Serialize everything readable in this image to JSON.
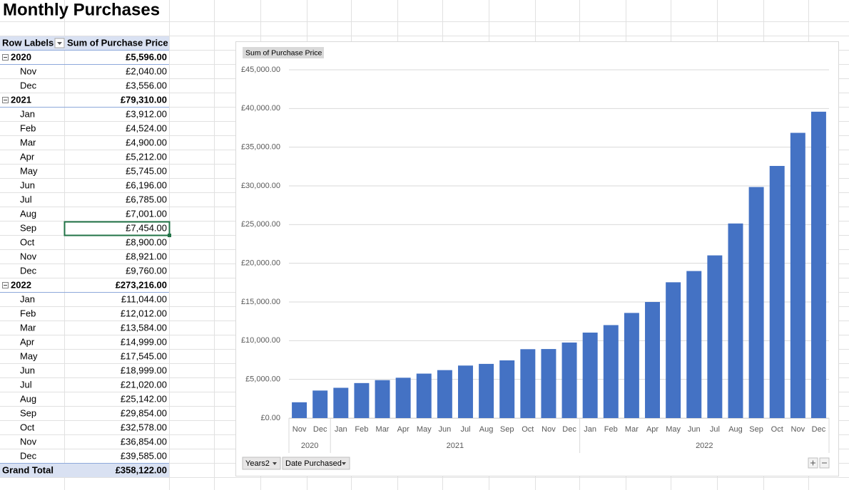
{
  "sheet_title": "Monthly Purchases",
  "pivot_table": {
    "headers": [
      "Row Labels",
      "Sum of Purchase Price"
    ],
    "groups": [
      {
        "label": "2020",
        "total": "£5,596.00",
        "rows": [
          [
            "Nov",
            "£2,040.00"
          ],
          [
            "Dec",
            "£3,556.00"
          ]
        ]
      },
      {
        "label": "2021",
        "total": "£79,310.00",
        "rows": [
          [
            "Jan",
            "£3,912.00"
          ],
          [
            "Feb",
            "£4,524.00"
          ],
          [
            "Mar",
            "£4,900.00"
          ],
          [
            "Apr",
            "£5,212.00"
          ],
          [
            "May",
            "£5,745.00"
          ],
          [
            "Jun",
            "£6,196.00"
          ],
          [
            "Jul",
            "£6,785.00"
          ],
          [
            "Aug",
            "£7,001.00"
          ],
          [
            "Sep",
            "£7,454.00"
          ],
          [
            "Oct",
            "£8,900.00"
          ],
          [
            "Nov",
            "£8,921.00"
          ],
          [
            "Dec",
            "£9,760.00"
          ]
        ]
      },
      {
        "label": "2022",
        "total": "£273,216.00",
        "rows": [
          [
            "Jan",
            "£11,044.00"
          ],
          [
            "Feb",
            "£12,012.00"
          ],
          [
            "Mar",
            "£13,584.00"
          ],
          [
            "Apr",
            "£14,999.00"
          ],
          [
            "May",
            "£17,545.00"
          ],
          [
            "Jun",
            "£18,999.00"
          ],
          [
            "Jul",
            "£21,020.00"
          ],
          [
            "Aug",
            "£25,142.00"
          ],
          [
            "Sep",
            "£29,854.00"
          ],
          [
            "Oct",
            "£32,578.00"
          ],
          [
            "Nov",
            "£36,854.00"
          ],
          [
            "Dec",
            "£39,585.00"
          ]
        ]
      }
    ],
    "grand_total": [
      "Grand Total",
      "£358,122.00"
    ]
  },
  "chart_data": {
    "type": "bar",
    "category_groups": [
      {
        "name": "2020",
        "categories": [
          "Nov",
          "Dec"
        ]
      },
      {
        "name": "2021",
        "categories": [
          "Jan",
          "Feb",
          "Mar",
          "Apr",
          "May",
          "Jun",
          "Jul",
          "Aug",
          "Sep",
          "Oct",
          "Nov",
          "Dec"
        ]
      },
      {
        "name": "2022",
        "categories": [
          "Jan",
          "Feb",
          "Mar",
          "Apr",
          "May",
          "Jun",
          "Jul",
          "Aug",
          "Sep",
          "Oct",
          "Nov",
          "Dec"
        ]
      }
    ],
    "series": [
      {
        "name": "Sum of Purchase Price",
        "color": "#4472c4",
        "values": [
          2040,
          3556,
          3912,
          4524,
          4900,
          5212,
          5745,
          6196,
          6785,
          7001,
          7454,
          8900,
          8921,
          9760,
          11044,
          12012,
          13584,
          14999,
          17545,
          18999,
          21020,
          25142,
          29854,
          32578,
          36854,
          39585
        ]
      }
    ],
    "ylim": [
      0,
      45000
    ],
    "yticks": [
      {
        "value": 0,
        "label": "£0.00"
      },
      {
        "value": 5000,
        "label": "£5,000.00"
      },
      {
        "value": 10000,
        "label": "£10,000.00"
      },
      {
        "value": 15000,
        "label": "£15,000.00"
      },
      {
        "value": 20000,
        "label": "£20,000.00"
      },
      {
        "value": 25000,
        "label": "£25,000.00"
      },
      {
        "value": 30000,
        "label": "£30,000.00"
      },
      {
        "value": 35000,
        "label": "£35,000.00"
      },
      {
        "value": 40000,
        "label": "£40,000.00"
      },
      {
        "value": 45000,
        "label": "£45,000.00"
      }
    ],
    "grid": true,
    "field_buttons": [
      "Years2",
      "Date Purchased"
    ]
  }
}
